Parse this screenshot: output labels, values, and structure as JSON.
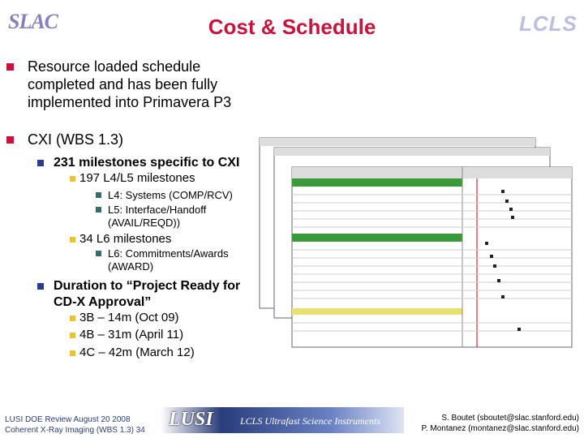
{
  "header": {
    "title": "Cost & Schedule",
    "logo_left": "SLAC",
    "logo_right": "LCLS"
  },
  "bullets": [
    {
      "level": 1,
      "text": "Resource loaded schedule completed and has been fully implemented into Primavera P3"
    },
    {
      "level": 1,
      "text": "CXI (WBS 1.3)"
    },
    {
      "level": 2,
      "text": "231 milestones specific to CXI"
    },
    {
      "level": 3,
      "text": "197 L4/L5 milestones"
    },
    {
      "level": 4,
      "text": "L4: Systems (COMP/RCV)"
    },
    {
      "level": 4,
      "text": "L5: Interface/Handoff (AVAIL/REQD))"
    },
    {
      "level": 3,
      "text": "34 L6 milestones"
    },
    {
      "level": 4,
      "text": "L6: Commitments/Awards (AWARD)"
    },
    {
      "level": 2,
      "text": "Duration to “Project Ready for CD-X Approval”"
    },
    {
      "level": 3,
      "text": "3B – 14m (Oct 09)"
    },
    {
      "level": 3,
      "text": "4B – 31m (April 11)"
    },
    {
      "level": 3,
      "text": "4C – 42m (March 12)"
    }
  ],
  "footer": {
    "left_1": "LUSI DOE Review      August 20 2008",
    "left_2": "Coherent X-Ray Imaging (WBS 1.3) 34",
    "banner_logo": "LUSI",
    "banner_text": "LCLS Ultrafast Science Instruments",
    "right_1": "S. Boutet (sboutet@slac.stanford.edu)",
    "right_2": "P. Montanez (montanez@slac.stanford.edu)"
  }
}
